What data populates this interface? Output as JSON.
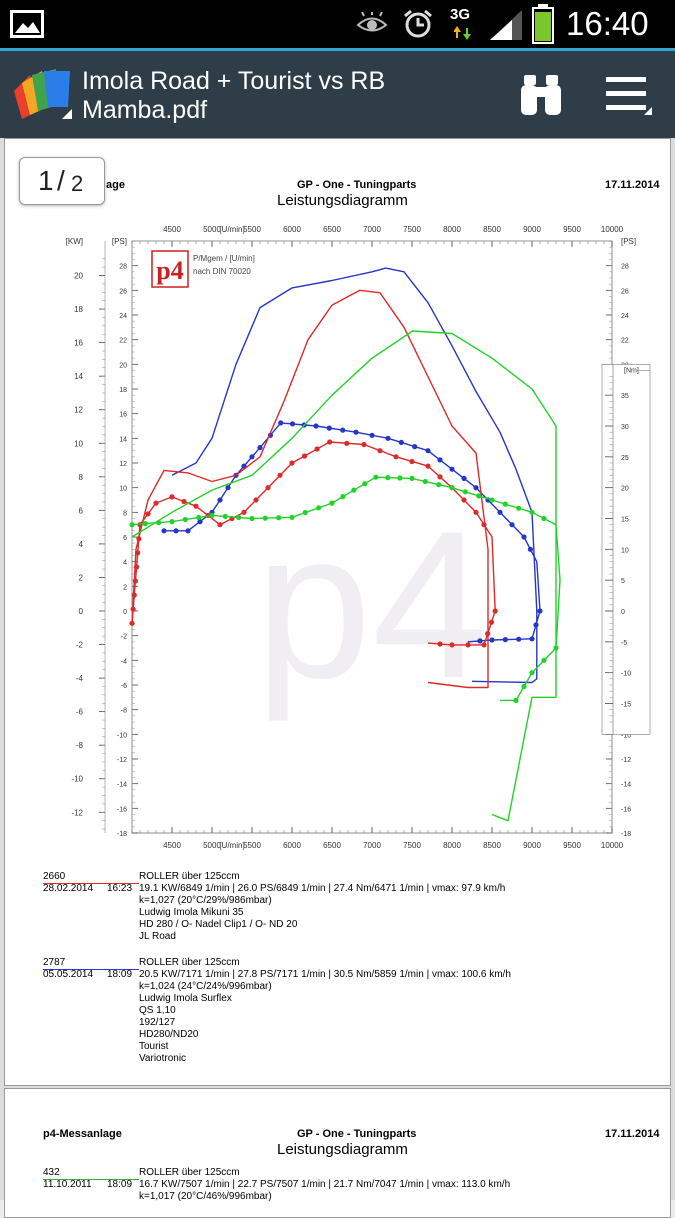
{
  "status_bar": {
    "time": "16:40",
    "network": "3G",
    "icons": [
      "image-icon",
      "eye-icon",
      "alarm-icon",
      "network-3g-icon",
      "signal-icon",
      "battery-icon"
    ]
  },
  "app_bar": {
    "title": "Imola Road + Tourist vs RB Mamba.pdf",
    "icons": [
      "app-logo-icon",
      "binoculars-icon",
      "menu-icon"
    ]
  },
  "page_indicator": {
    "current": "1",
    "total": "2"
  },
  "page1": {
    "header_left": "age",
    "header_center": "GP - One - Tuningparts",
    "header_date": "17.11.2014",
    "title": "Leistungsdiagramm",
    "logo_text": "p4",
    "legend_line1": "P/Mgem / [U/min]",
    "legend_line2": "nach DIN 70020",
    "watermark": "p4",
    "records": [
      {
        "id": "2660",
        "date": "28.02.2014",
        "time": "16:23",
        "vehicle": "ROLLER über 125ccm",
        "lines": [
          "19.1 KW/6849 1/min  |  26.0 PS/6849 1/min  |  27.4 Nm/6471 1/min | vmax: 97.9 km/h",
          "k=1,027 (20°C/29%/986mbar)",
          "Ludwig Imola Mikuni 35",
          "HD 280 / O- Nadel Clip1 / O- ND 20",
          "JL Road"
        ],
        "underline_color": "#d93030"
      },
      {
        "id": "2787",
        "date": "05.05.2014",
        "time": "18:09",
        "vehicle": "ROLLER über 125ccm",
        "lines": [
          "20.5 KW/7171 1/min  |  27.8 PS/7171 1/min  |  30.5 Nm/5859 1/min | vmax: 100.6 km/h",
          "k=1,024 (24°C/24%/996mbar)",
          "Ludwig Imola Surflex",
          "QS 1,10",
          "192/127",
          "HD280/ND20",
          "Tourist",
          "Variotronic"
        ],
        "underline_color": "#2a3bc8"
      }
    ]
  },
  "page2": {
    "header_left": "p4-Messanlage",
    "header_center": "GP - One - Tuningparts",
    "header_date": "17.11.2014",
    "title": "Leistungsdiagramm",
    "record": {
      "id": "432",
      "date": "11.10.2011",
      "time": "18:09",
      "vehicle": "ROLLER über 125ccm",
      "lines": [
        "16.7 KW/7507 1/min  |  22.7 PS/7507 1/min  |  21.7 Nm/7047 1/min | vmax: 113.0 km/h",
        "k=1,017 (20°C/46%/996mbar)"
      ],
      "underline_color": "#30b030"
    }
  },
  "chart_data": {
    "type": "line",
    "title": "Leistungsdiagramm",
    "xlabel": "[U/min]",
    "ylabel_left": "[KW]",
    "ylabel_ps": "[PS]",
    "ylabel_nm": "[Nm]",
    "x_ticks": [
      4500,
      5000,
      5500,
      6000,
      6500,
      7000,
      7500,
      8000,
      8500,
      9000,
      9500,
      10000
    ],
    "kw_ticks": [
      20,
      18,
      16,
      14,
      12,
      10,
      8,
      6,
      4,
      2,
      0,
      -2,
      -4,
      -6,
      -8,
      -10,
      -12
    ],
    "ps_ticks": [
      28,
      26,
      24,
      22,
      20,
      18,
      16,
      14,
      12,
      10,
      8,
      6,
      4,
      2,
      0,
      -2,
      -4,
      -6,
      -8,
      -10,
      -12,
      -14,
      -16,
      -18
    ],
    "nm_ticks": [
      35,
      30,
      25,
      20,
      15,
      10,
      5,
      0,
      -5,
      -10,
      -15
    ],
    "xlim": [
      4000,
      10000
    ],
    "ylim_ps": [
      -18,
      30
    ],
    "grid": false,
    "series": [
      {
        "color": "#2636c8",
        "power_ps": [
          [
            4500,
            11
          ],
          [
            4800,
            12
          ],
          [
            5000,
            14
          ],
          [
            5300,
            20
          ],
          [
            5600,
            24.6
          ],
          [
            6000,
            26.2
          ],
          [
            6500,
            26.8
          ],
          [
            7000,
            27.5
          ],
          [
            7171,
            27.8
          ],
          [
            7400,
            27.5
          ],
          [
            7700,
            25
          ],
          [
            8000,
            21.5
          ],
          [
            8300,
            17.8
          ],
          [
            8600,
            14.5
          ],
          [
            8800,
            11.5
          ],
          [
            9000,
            8
          ],
          [
            9060,
            0
          ],
          [
            9060,
            -5.5
          ],
          [
            9000,
            -5.8
          ],
          [
            8250,
            -5.7
          ]
        ],
        "torque_nm": [
          [
            4400,
            13
          ],
          [
            4700,
            13
          ],
          [
            5000,
            16
          ],
          [
            5300,
            22
          ],
          [
            5600,
            26.5
          ],
          [
            5859,
            30.5
          ],
          [
            6300,
            30
          ],
          [
            6800,
            29
          ],
          [
            7200,
            28
          ],
          [
            7700,
            26
          ],
          [
            8000,
            23
          ],
          [
            8300,
            20
          ],
          [
            8600,
            16
          ],
          [
            8900,
            12
          ],
          [
            9060,
            8
          ],
          [
            9100,
            0
          ],
          [
            9000,
            -4.5
          ],
          [
            8500,
            -4.7
          ],
          [
            8200,
            -5
          ]
        ]
      },
      {
        "color": "#dd2a2a",
        "power_ps": [
          [
            4000,
            -1
          ],
          [
            4050,
            5
          ],
          [
            4200,
            9
          ],
          [
            4400,
            11.4
          ],
          [
            4700,
            11.2
          ],
          [
            5000,
            10.5
          ],
          [
            5300,
            11
          ],
          [
            5600,
            12.5
          ],
          [
            5900,
            17
          ],
          [
            6200,
            22
          ],
          [
            6500,
            24.8
          ],
          [
            6849,
            26
          ],
          [
            7100,
            25.8
          ],
          [
            7400,
            23
          ],
          [
            7700,
            19
          ],
          [
            8000,
            15
          ],
          [
            8300,
            12.8
          ],
          [
            8450,
            5
          ],
          [
            8450,
            -6.2
          ],
          [
            8200,
            -6.2
          ],
          [
            7700,
            -5.8
          ]
        ],
        "torque_nm": [
          [
            4000,
            -2
          ],
          [
            4100,
            14
          ],
          [
            4300,
            17.5
          ],
          [
            4500,
            18.5
          ],
          [
            4800,
            17
          ],
          [
            5100,
            14
          ],
          [
            5400,
            16
          ],
          [
            5700,
            20
          ],
          [
            6000,
            24
          ],
          [
            6471,
            27.4
          ],
          [
            6900,
            27
          ],
          [
            7300,
            25
          ],
          [
            7700,
            23.5
          ],
          [
            8000,
            20
          ],
          [
            8300,
            16
          ],
          [
            8500,
            12
          ],
          [
            8540,
            0
          ],
          [
            8400,
            -5.5
          ],
          [
            8000,
            -5.5
          ],
          [
            7700,
            -5.2
          ]
        ]
      },
      {
        "color": "#22d22a",
        "power_ps": [
          [
            4000,
            6
          ],
          [
            4500,
            8
          ],
          [
            5000,
            9.8
          ],
          [
            5500,
            11
          ],
          [
            6000,
            14
          ],
          [
            6500,
            17.5
          ],
          [
            7000,
            20.5
          ],
          [
            7507,
            22.7
          ],
          [
            8000,
            22.5
          ],
          [
            8500,
            20.5
          ],
          [
            9000,
            18
          ],
          [
            9300,
            15
          ],
          [
            9300,
            10
          ],
          [
            9300,
            -7
          ],
          [
            9000,
            -7
          ],
          [
            8700,
            -17
          ],
          [
            8500,
            -16.5
          ]
        ],
        "torque_nm": [
          [
            4000,
            14
          ],
          [
            4500,
            14.5
          ],
          [
            5000,
            15.5
          ],
          [
            5500,
            15
          ],
          [
            6000,
            15.2
          ],
          [
            6500,
            17.5
          ],
          [
            7047,
            21.7
          ],
          [
            7500,
            21.5
          ],
          [
            8000,
            20
          ],
          [
            8500,
            18
          ],
          [
            9000,
            16
          ],
          [
            9300,
            14
          ],
          [
            9350,
            5
          ],
          [
            9300,
            -6
          ],
          [
            9000,
            -10
          ],
          [
            8800,
            -14.5
          ],
          [
            8600,
            -14.5
          ]
        ]
      }
    ]
  }
}
